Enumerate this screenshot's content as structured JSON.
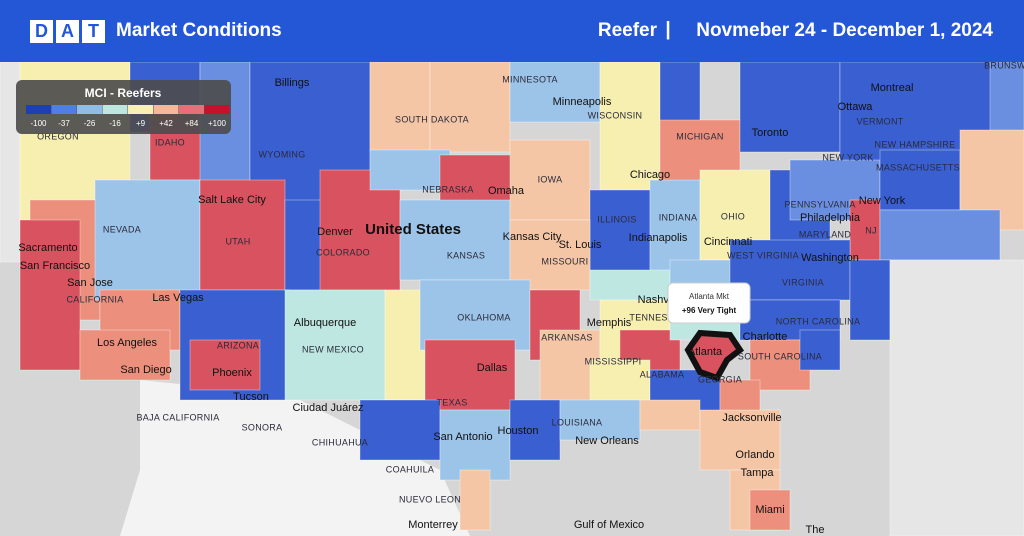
{
  "header": {
    "logo": [
      "D",
      "A",
      "T"
    ],
    "title": "Market Conditions",
    "segment": "Reefer",
    "separator": "|",
    "dates": "Novmeber 24 - December 1, 2024"
  },
  "legend": {
    "title": "MCI - Reefers",
    "items": [
      {
        "label": "-100",
        "color": "#1c3fb8"
      },
      {
        "label": "-37",
        "color": "#4f7fe0"
      },
      {
        "label": "-26",
        "color": "#8fbde6"
      },
      {
        "label": "-16",
        "color": "#bfe6df"
      },
      {
        "label": "+9",
        "color": "#f7efb5"
      },
      {
        "label": "+42",
        "color": "#f4b99a"
      },
      {
        "label": "+84",
        "color": "#e5707a"
      },
      {
        "label": "+100",
        "color": "#c8102e"
      }
    ]
  },
  "tooltip": {
    "title": "Atlanta Mkt",
    "value": "+96 Very Tight"
  },
  "map": {
    "country": "United States",
    "labels": [
      "Minneapolis",
      "Ottawa",
      "Montreal",
      "Toronto",
      "Chicago",
      "MINNESOTA",
      "WISCONSIN",
      "MICHIGAN",
      "VERMONT",
      "NEW HAMPSHIRE",
      "NEW YORK",
      "MASSACHUSETTS",
      "IDAHO",
      "OREGON",
      "WYOMING",
      "SOUTH DAKOTA",
      "NEBRASKA",
      "Omaha",
      "IOWA",
      "Salt Lake City",
      "NEVADA",
      "UTAH",
      "Denver",
      "COLORADO",
      "ILLINOIS",
      "INDIANA",
      "OHIO",
      "PENNSYLVANIA",
      "New York",
      "Philadelphia",
      "MARYLAND",
      "NJ",
      "Kansas City",
      "St. Louis",
      "Indianapolis",
      "Cincinnati",
      "Washington",
      "WEST VIRGINIA",
      "KANSAS",
      "MISSOURI",
      "Sacramento",
      "San Francisco",
      "San Jose",
      "CALIFORNIA",
      "Las Vegas",
      "VIRGINIA",
      "Nashville",
      "OKLAHOMA",
      "ARKANSAS",
      "Memphis",
      "TENNESSEE",
      "Albuquerque",
      "NEW MEXICO",
      "ARIZONA",
      "Los Angeles",
      "NORTH CAROLINA",
      "Charlotte",
      "SOUTH CAROLINA",
      "Atlanta",
      "San Diego",
      "Phoenix",
      "MISSISSIPPI",
      "ALABAMA",
      "GEORGIA",
      "Dallas",
      "Tucson",
      "TEXAS",
      "Ciudad Juárez",
      "BAJA CALIFORNIA",
      "SONORA",
      "LOUISIANA",
      "Houston",
      "Jacksonville",
      "San Antonio",
      "New Orleans",
      "CHIHUAHUA",
      "Orlando",
      "COAHUILA",
      "Tampa",
      "NUEVO LEON",
      "Miami",
      "Monterrey",
      "Gulf of Mexico",
      "BRUNSW",
      "The",
      "Billings"
    ]
  }
}
